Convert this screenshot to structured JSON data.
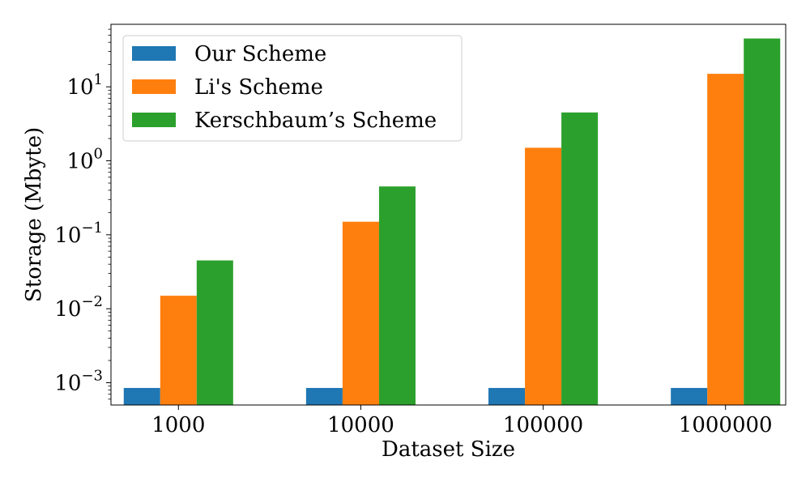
{
  "chart_data": {
    "type": "bar",
    "xlabel": "Dataset Size",
    "ylabel": "Storage (Mbyte)",
    "y_scale": "log",
    "ylim": [
      0.0005,
      70
    ],
    "categories": [
      "1000",
      "10000",
      "100000",
      "1000000"
    ],
    "y_ticks": [
      {
        "value": 0.001,
        "base": "10",
        "exp": "−3"
      },
      {
        "value": 0.01,
        "base": "10",
        "exp": "−2"
      },
      {
        "value": 0.1,
        "base": "10",
        "exp": "−1"
      },
      {
        "value": 1,
        "base": "10",
        "exp": "0"
      },
      {
        "value": 10,
        "base": "10",
        "exp": "1"
      }
    ],
    "series": [
      {
        "name": "Our Scheme",
        "color": "#1f77b4",
        "values": [
          0.00085,
          0.00085,
          0.00085,
          0.00085
        ]
      },
      {
        "name": "Li's Scheme",
        "color": "#ff7f0e",
        "values": [
          0.015,
          0.15,
          1.5,
          15
        ]
      },
      {
        "name": "Kerschbaum’s Scheme",
        "color": "#2ca02c",
        "values": [
          0.045,
          0.45,
          4.5,
          45
        ]
      }
    ],
    "legend_position": "top-left",
    "grid": false
  }
}
